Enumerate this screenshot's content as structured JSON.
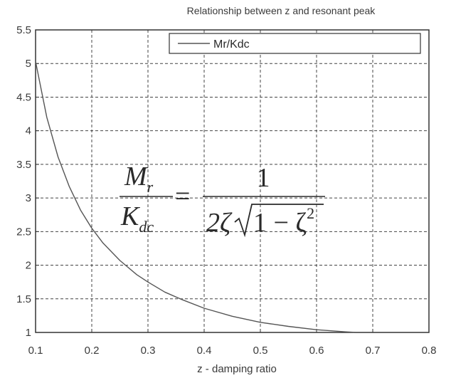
{
  "chart_data": {
    "type": "line",
    "title": "Relationship between z and resonant peak",
    "xlabel": "z - damping ratio",
    "ylabel": "",
    "xlim": [
      0.1,
      0.8
    ],
    "ylim": [
      1,
      5.5
    ],
    "x_ticks": [
      "0.1",
      "0.2",
      "0.3",
      "0.4",
      "0.5",
      "0.6",
      "0.7",
      "0.8"
    ],
    "y_ticks": [
      "1",
      "1.5",
      "2",
      "2.5",
      "3",
      "3.5",
      "4",
      "4.5",
      "5",
      "5.5"
    ],
    "grid": true,
    "legend_position": "top-right",
    "series": [
      {
        "name": "Mr/Kdc",
        "color": "#555555",
        "x": [
          0.1,
          0.12,
          0.14,
          0.16,
          0.18,
          0.2,
          0.22,
          0.25,
          0.28,
          0.3,
          0.33,
          0.36,
          0.4,
          0.45,
          0.5,
          0.55,
          0.6,
          0.65,
          0.67
        ],
        "y": [
          5.03,
          4.2,
          3.61,
          3.17,
          2.82,
          2.55,
          2.33,
          2.07,
          1.86,
          1.75,
          1.6,
          1.49,
          1.36,
          1.24,
          1.15,
          1.09,
          1.04,
          1.01,
          1.0
        ]
      }
    ],
    "annotation": {
      "lhs_num_main": "M",
      "lhs_num_sub": "r",
      "lhs_den_main": "K",
      "lhs_den_sub": "dc",
      "equals": "=",
      "rhs_num": "1",
      "rhs_den_coef": "2ζ",
      "rhs_den_radicand": "1 − ζ",
      "rhs_den_exp": "2"
    }
  }
}
